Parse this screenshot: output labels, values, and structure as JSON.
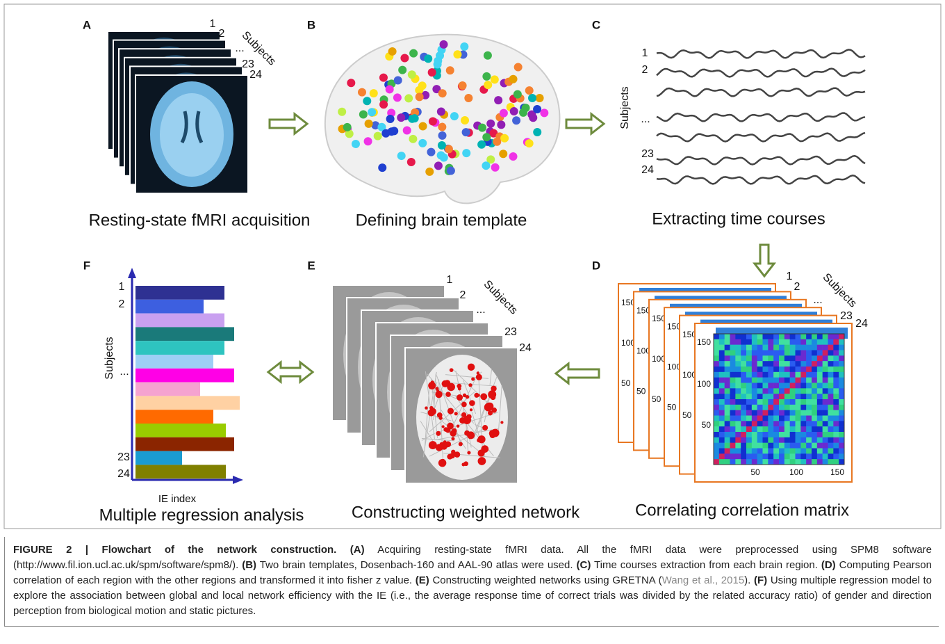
{
  "panels": [
    {
      "letter": "A",
      "title": "Resting-state fMRI acquisition",
      "labels": [
        "1",
        "2",
        "...",
        "Subjects",
        "23",
        "24"
      ]
    },
    {
      "letter": "B",
      "title": "Defining brain template"
    },
    {
      "letter": "C",
      "title": "Extracting time courses",
      "labels": [
        "1",
        "2",
        "Subjects",
        "...",
        "23",
        "24"
      ]
    },
    {
      "letter": "D",
      "title": "Correlating correlation matrix",
      "labels": [
        "1",
        "2",
        "...",
        "Subjects",
        "23",
        "24"
      ],
      "y_ticks": [
        "150",
        "100",
        "50"
      ],
      "x_ticks": [
        "50",
        "100",
        "150"
      ]
    },
    {
      "letter": "E",
      "title": "Constructing weighted network",
      "labels": [
        "1",
        "2",
        "...",
        "Subjects",
        "23",
        "24"
      ]
    },
    {
      "letter": "F",
      "title": "Multiple regression analysis",
      "labels": [
        "1",
        "2",
        "Subjects",
        "...",
        "23",
        "24"
      ],
      "x_label": "IE index"
    }
  ],
  "caption": [
    {
      "text": "FIGURE 2 | Flowchart of the network construction. (A)",
      "style": "bold"
    },
    {
      "text": " Acquiring resting-state fMRI data. All the fMRI data were preprocessed using SPM8 software (http://www.fil.ion.ucl.ac.uk/spm/software/spm8/). ",
      "style": "normal"
    },
    {
      "text": "(B)",
      "style": "bold"
    },
    {
      "text": " Two brain templates, Dosenbach-160 and AAL-90 atlas were used. ",
      "style": "normal"
    },
    {
      "text": "(C)",
      "style": "bold"
    },
    {
      "text": " Time courses extraction from each brain region. ",
      "style": "normal"
    },
    {
      "text": "(D)",
      "style": "bold"
    },
    {
      "text": " Computing Pearson correlation of each region with the other regions and transformed it into fisher z value. ",
      "style": "normal"
    },
    {
      "text": "(E)",
      "style": "bold"
    },
    {
      "text": " Constructing weighted networks using GRETNA (",
      "style": "normal"
    },
    {
      "text": "Wang et al., 2015",
      "style": "link"
    },
    {
      "text": "). ",
      "style": "normal"
    },
    {
      "text": "(F)",
      "style": "bold"
    },
    {
      "text": " Using multiple regression model to explore the association between global and local network efficiency with the IE (i.e., the average response time of correct trials was divided by the related accuracy ratio) of gender and direction perception from biological motion and static pictures.",
      "style": "normal"
    }
  ]
}
